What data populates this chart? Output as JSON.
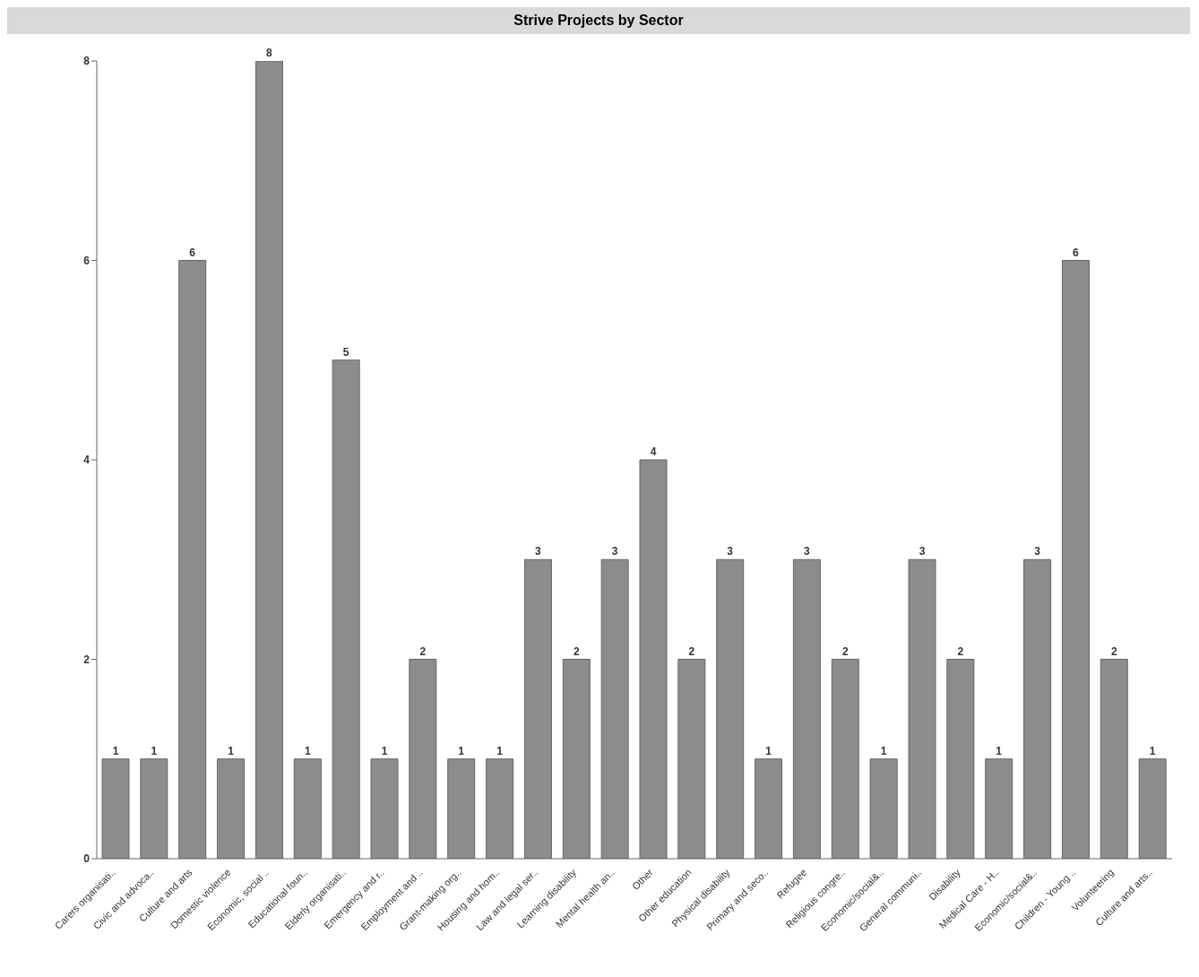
{
  "chart_data": {
    "type": "bar",
    "title": "Strive Projects by Sector",
    "categories": [
      "Carers organisati..",
      "Civic and advoca..",
      "Culture and arts",
      "Domestic violence",
      "Economic, social ..",
      "Educational foun..",
      "Elderly organisati..",
      "Emergency and r..",
      "Employment and ..",
      "Grant-making org..",
      "Housing and hom..",
      "Law and legal ser..",
      "Learning disability",
      "Mental health an..",
      "Other",
      "Other education",
      "Physical disability",
      "Primary and seco..",
      "Refugee",
      "Religious congre..",
      "Economic/social&..",
      "General communi..",
      "Disability",
      "Medical Care - H..",
      "Economic/social&..",
      "Children - Young ..",
      "Volunteering",
      "Culture and arts.."
    ],
    "values": [
      1,
      1,
      6,
      1,
      8,
      1,
      5,
      1,
      2,
      1,
      1,
      3,
      2,
      3,
      4,
      2,
      3,
      1,
      3,
      2,
      1,
      3,
      2,
      1,
      3,
      6,
      2,
      1
    ],
    "color": "#8c8c8c",
    "ylim": [
      0,
      8
    ],
    "yticks": [
      0,
      2,
      4,
      6,
      8
    ],
    "grid": false,
    "data_labels": true
  }
}
